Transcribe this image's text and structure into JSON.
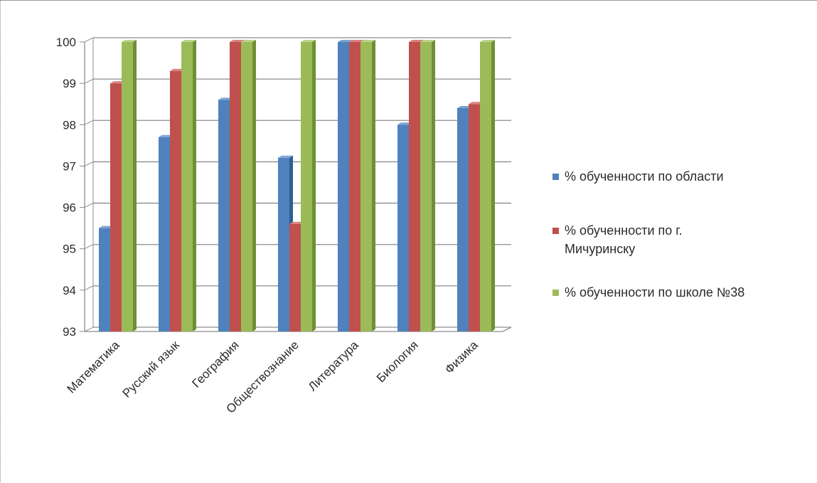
{
  "chart_data": {
    "type": "bar",
    "categories": [
      "Математика",
      "Русский язык",
      "География",
      "Обществознание",
      "Литература",
      "Биология",
      "Физика"
    ],
    "series": [
      {
        "name": "% обученности по области",
        "color": "#4f81bd",
        "side": "#2f5f96",
        "top": "#7ea4d4",
        "values": [
          95.5,
          97.7,
          98.6,
          97.2,
          100,
          98.0,
          98.4
        ]
      },
      {
        "name": "% обученности по г. Мичуринску",
        "color": "#c0504d",
        "side": "#8c2f2c",
        "top": "#d98481",
        "values": [
          99.0,
          99.3,
          100,
          95.6,
          100,
          100,
          98.5
        ]
      },
      {
        "name": "% обученности по школе №38",
        "color": "#9bbb59",
        "side": "#6f8f37",
        "top": "#bcd48a",
        "values": [
          100,
          100,
          100,
          100,
          100,
          100,
          100
        ]
      }
    ],
    "yticks": [
      "100",
      "99",
      "98",
      "97",
      "96",
      "95",
      "94",
      "93"
    ],
    "ylim": [
      93,
      100
    ],
    "legend_position": "right",
    "legend_lines": [
      [
        "% обученности по области"
      ],
      [
        "% обученности по г.",
        "Мичуринску"
      ],
      [
        "% обученности по школе №38"
      ]
    ]
  }
}
